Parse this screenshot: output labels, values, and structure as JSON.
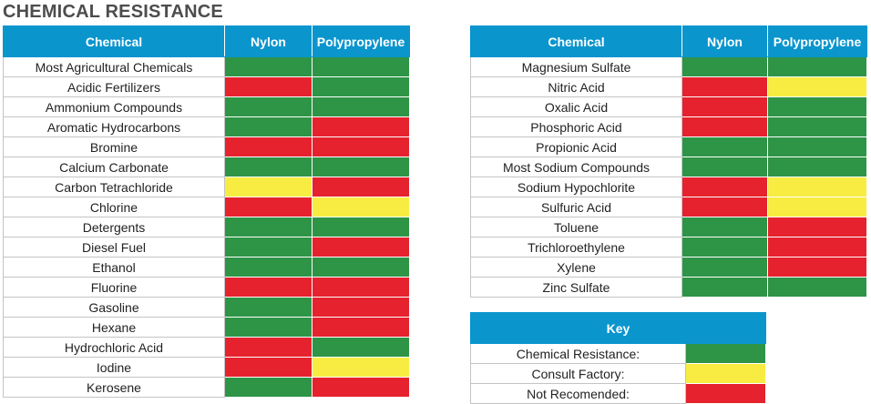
{
  "title": "CHEMICAL RESISTANCE",
  "headers": {
    "chemical": "Chemical",
    "nylon": "Nylon",
    "polypropylene": "Polypropylene"
  },
  "colors": {
    "green": "#2e9446",
    "red": "#e5222d",
    "yellow": "#f8ec42",
    "header": "#0a95cd"
  },
  "left_rows": [
    {
      "name": "Most Agricultural Chemicals",
      "nylon": "g",
      "pp": "g"
    },
    {
      "name": "Acidic Fertilizers",
      "nylon": "r",
      "pp": "g"
    },
    {
      "name": "Ammonium Compounds",
      "nylon": "g",
      "pp": "g"
    },
    {
      "name": "Aromatic Hydrocarbons",
      "nylon": "g",
      "pp": "r"
    },
    {
      "name": "Bromine",
      "nylon": "r",
      "pp": "r"
    },
    {
      "name": "Calcium Carbonate",
      "nylon": "g",
      "pp": "g"
    },
    {
      "name": "Carbon Tetrachloride",
      "nylon": "y",
      "pp": "r"
    },
    {
      "name": "Chlorine",
      "nylon": "r",
      "pp": "y"
    },
    {
      "name": "Detergents",
      "nylon": "g",
      "pp": "g"
    },
    {
      "name": "Diesel Fuel",
      "nylon": "g",
      "pp": "r"
    },
    {
      "name": "Ethanol",
      "nylon": "g",
      "pp": "g"
    },
    {
      "name": "Fluorine",
      "nylon": "r",
      "pp": "r"
    },
    {
      "name": "Gasoline",
      "nylon": "g",
      "pp": "r"
    },
    {
      "name": "Hexane",
      "nylon": "g",
      "pp": "r"
    },
    {
      "name": "Hydrochloric Acid",
      "nylon": "r",
      "pp": "g"
    },
    {
      "name": "Iodine",
      "nylon": "r",
      "pp": "y"
    },
    {
      "name": "Kerosene",
      "nylon": "g",
      "pp": "r"
    }
  ],
  "right_rows": [
    {
      "name": "Magnesium Sulfate",
      "nylon": "g",
      "pp": "g"
    },
    {
      "name": "Nitric Acid",
      "nylon": "r",
      "pp": "y"
    },
    {
      "name": "Oxalic Acid",
      "nylon": "r",
      "pp": "g"
    },
    {
      "name": "Phosphoric Acid",
      "nylon": "r",
      "pp": "g"
    },
    {
      "name": "Propionic Acid",
      "nylon": "g",
      "pp": "g"
    },
    {
      "name": "Most Sodium Compounds",
      "nylon": "g",
      "pp": "g"
    },
    {
      "name": "Sodium Hypochlorite",
      "nylon": "r",
      "pp": "y"
    },
    {
      "name": "Sulfuric Acid",
      "nylon": "r",
      "pp": "y"
    },
    {
      "name": "Toluene",
      "nylon": "g",
      "pp": "r"
    },
    {
      "name": "Trichloroethylene",
      "nylon": "g",
      "pp": "r"
    },
    {
      "name": "Xylene",
      "nylon": "g",
      "pp": "r"
    },
    {
      "name": "Zinc Sulfate",
      "nylon": "g",
      "pp": "g"
    }
  ],
  "key": {
    "title": "Key",
    "items": [
      {
        "label": "Chemical Resistance:",
        "color": "g"
      },
      {
        "label": "Consult Factory:",
        "color": "y"
      },
      {
        "label": "Not Recomended:",
        "color": "r"
      }
    ]
  }
}
